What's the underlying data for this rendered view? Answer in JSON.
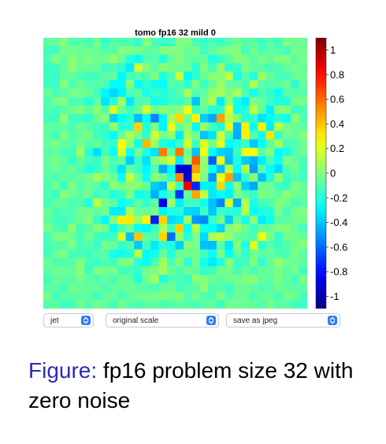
{
  "title": "tomo fp16 32 mild 0",
  "controls": {
    "colormap": {
      "value": "jet"
    },
    "scale": {
      "value": "original scale"
    },
    "save": {
      "value": "save as jpeg"
    }
  },
  "caption": {
    "prefix": "Figure:",
    "text": " fp16 problem size 32 with zero noise"
  },
  "colors": {
    "caret": "#2f7df6",
    "caption_prefix": "#2b2bb8"
  },
  "chart_data": {
    "type": "heatmap",
    "title": "tomo fp16 32 mild 0",
    "colormap": "jet",
    "rows": 32,
    "cols": 32,
    "vmin": -1.1,
    "vmax": 1.1,
    "colorbar_ticks": [
      1,
      0.8,
      0.6,
      0.4,
      0.2,
      0,
      -0.2,
      -0.4,
      -0.6,
      -0.8,
      -1
    ],
    "colorbar_tick_labels": [
      "1",
      "0.8",
      "0.6",
      "0.4",
      "0.2",
      "0",
      "-0.2",
      "-0.4",
      "-0.6",
      "-0.8",
      "-1"
    ],
    "values": [
      [
        -0.07,
        -0.06,
        0.01,
        -0.11,
        -0.09,
        -0.12,
        -0.03,
        -0.17,
        -0.08,
        -0.12,
        -0.1,
        -0.17,
        0.02,
        -0.12,
        -0.17,
        -0.14,
        -0.0,
        -0.01,
        -0.12,
        -0.16,
        -0.11,
        -0.15,
        -0.08,
        -0.04,
        -0.08,
        -0.09,
        -0.15,
        -0.08,
        -0.14,
        -0.01,
        -0.05,
        -0.04
      ],
      [
        -0.13,
        -0.14,
        -0.03,
        -0.03,
        -0.04,
        -0.05,
        -0.05,
        -0.09,
        -0.09,
        -0.0,
        -0.01,
        -0.02,
        -0.07,
        -0.08,
        0.01,
        -0.0,
        -0.0,
        -0.05,
        -0.02,
        -0.14,
        -0.07,
        -0.02,
        -0.01,
        0.01,
        -0.13,
        -0.04,
        -0.11,
        -0.07,
        -0.08,
        -0.14,
        -0.03,
        -0.03
      ],
      [
        -0.11,
        0.0,
        -0.07,
        0.02,
        -0.05,
        0.0,
        -0.04,
        -0.03,
        0.05,
        -0.05,
        -0.19,
        -0.26,
        -0.1,
        -0.09,
        -0.21,
        -0.04,
        0.01,
        -0.07,
        -0.07,
        -0.05,
        -0.22,
        -0.15,
        -0.07,
        0.01,
        -0.01,
        -0.08,
        -0.02,
        -0.05,
        -0.01,
        -0.0,
        -0.08,
        -0.02
      ],
      [
        -0.16,
        -0.14,
        -0.07,
        0.03,
        -0.04,
        -0.05,
        -0.06,
        -0.14,
        -0.12,
        -0.17,
        -0.31,
        0.16,
        0.01,
        -0.09,
        0.02,
        -0.02,
        -0.04,
        -0.04,
        -0.19,
        -0.01,
        -0.14,
        0.05,
        -0.17,
        -0.16,
        -0.02,
        -0.06,
        -0.09,
        -0.12,
        -0.11,
        -0.06,
        -0.03,
        -0.04
      ],
      [
        -0.13,
        -0.16,
        -0.07,
        -0.06,
        -0.12,
        -0.14,
        -0.12,
        -0.08,
        -0.07,
        -0.29,
        -0.12,
        -0.1,
        -0.11,
        0.01,
        -0.21,
        -0.11,
        0.15,
        -0.29,
        -0.17,
        -0.05,
        0.03,
        0.02,
        0.13,
        -0.22,
        -0.09,
        -0.2,
        0.06,
        -0.06,
        -0.12,
        -0.12,
        -0.05,
        -0.04
      ],
      [
        -0.14,
        -0.15,
        0.01,
        -0.11,
        -0.05,
        -0.11,
        -0.09,
        -0.11,
        -0.28,
        -0.28,
        0.03,
        -0.27,
        -0.17,
        -0.25,
        -0.26,
        -0.08,
        -0.1,
        -0.18,
        0.01,
        -0.15,
        -0.05,
        0.06,
        -0.06,
        -0.07,
        -0.13,
        0.09,
        -0.08,
        -0.1,
        -0.09,
        -0.05,
        -0.18,
        -0.06
      ],
      [
        -0.05,
        -0.12,
        -0.09,
        -0.02,
        -0.02,
        -0.06,
        -0.13,
        -0.29,
        -0.36,
        -0.3,
        -0.11,
        -0.07,
        -0.23,
        -0.15,
        -0.19,
        -0.16,
        -0.1,
        0.08,
        -0.11,
        -0.07,
        0.06,
        0.08,
        -0.01,
        0.09,
        -0.1,
        -0.24,
        -0.11,
        -0.15,
        -0.26,
        -0.08,
        -0.09,
        -0.08
      ],
      [
        -0.1,
        -0.02,
        -0.0,
        -0.12,
        -0.11,
        -0.19,
        -0.07,
        -0.33,
        -0.2,
        0.08,
        -0.32,
        -0.12,
        -0.08,
        -0.24,
        -0.22,
        -0.14,
        -0.15,
        -0.08,
        -0.4,
        -0.02,
        0.1,
        -0.31,
        0.03,
        -0.23,
        -0.31,
        -0.01,
        -0.05,
        -0.15,
        -0.2,
        -0.2,
        -0.02,
        -0.02
      ],
      [
        -0.1,
        -0.12,
        -0.08,
        -0.04,
        -0.0,
        -0.07,
        0.02,
        -0.11,
        0.21,
        -0.04,
        -0.15,
        -0.06,
        0.19,
        -0.04,
        0.03,
        -0.03,
        0.02,
        0.25,
        -0.15,
        -0.07,
        -0.2,
        -0.18,
        0.22,
        -0.26,
        -0.19,
        0.13,
        -0.07,
        -0.3,
        0.01,
        0.02,
        -0.16,
        -0.11
      ],
      [
        -0.14,
        -0.15,
        0.04,
        -0.14,
        -0.14,
        -0.17,
        -0.05,
        0.03,
        -0.37,
        -0.27,
        -0.18,
        -0.42,
        -0.26,
        -0.54,
        -0.29,
        0.08,
        0.36,
        -0.03,
        0.3,
        -0.38,
        -0.46,
        0.48,
        0.11,
        0.01,
        -0.2,
        -0.15,
        -0.34,
        -0.27,
        -0.19,
        -0.26,
        0.04,
        -0.1
      ],
      [
        -0.06,
        -0.08,
        -0.06,
        -0.12,
        -0.04,
        -0.09,
        -0.12,
        -0.15,
        0.05,
        -0.18,
        -0.18,
        0.37,
        -0.21,
        -0.01,
        -0.3,
        0.23,
        -0.06,
        0.02,
        -0.28,
        0.05,
        -0.12,
        -0.23,
        0.23,
        -0.44,
        0.31,
        -0.28,
        0.3,
        -0.31,
        0.13,
        -0.03,
        -0.05,
        -0.07
      ],
      [
        -0.08,
        -0.13,
        -0.01,
        -0.1,
        -0.05,
        -0.02,
        -0.14,
        -0.18,
        -0.28,
        -0.05,
        0.09,
        -0.01,
        -0.18,
        0.17,
        -0.02,
        0.04,
        -0.32,
        0.08,
        -0.03,
        -0.4,
        -0.33,
        0.16,
        -0.11,
        -0.45,
        0.31,
        -0.08,
        -0.25,
        0.33,
        -0.18,
        -0.03,
        -0.06,
        0.01
      ],
      [
        -0.04,
        -0.02,
        -0.06,
        -0.1,
        -0.03,
        -0.09,
        -0.05,
        -0.14,
        -0.17,
        0.29,
        0.04,
        -0.26,
        0.43,
        0.06,
        -0.22,
        -0.28,
        -0.16,
        0.17,
        -0.14,
        0.2,
        -0.03,
        0.23,
        -0.27,
        -0.22,
        -0.17,
        -0.39,
        -0.28,
        -0.08,
        0.09,
        -0.12,
        -0.1,
        -0.04
      ],
      [
        -0.09,
        -0.06,
        -0.12,
        -0.13,
        0.07,
        -0.19,
        -0.34,
        -0.12,
        -0.26,
        0.21,
        -0.25,
        -0.03,
        -0.21,
        -0.34,
        0.56,
        -0.09,
        0.57,
        -0.04,
        -0.41,
        0.24,
        -0.27,
        -0.37,
        -0.39,
        -0.15,
        0.24,
        0.25,
        -0.07,
        0.01,
        -0.28,
        -0.22,
        -0.1,
        -0.04
      ],
      [
        -0.06,
        -0.02,
        -0.06,
        -0.17,
        -0.06,
        -0.12,
        -0.17,
        -0.02,
        -0.11,
        -0.07,
        -0.38,
        -0.15,
        -0.34,
        -0.01,
        0.07,
        0.2,
        -0.31,
        0.03,
        0.64,
        0.05,
        -0.62,
        0.23,
        -0.42,
        -0.21,
        -0.38,
        -0.44,
        -0.31,
        -0.12,
        -0.26,
        -0.0,
        -0.06,
        -0.12
      ],
      [
        -0.08,
        -0.04,
        -0.08,
        -0.06,
        -0.11,
        -0.21,
        -0.15,
        -0.04,
        -0.13,
        -0.34,
        -0.07,
        -0.14,
        -0.29,
        -0.1,
        -0.45,
        -0.29,
        -0.9,
        -0.93,
        0.48,
        0.04,
        -0.26,
        -0.42,
        0.13,
        -0.26,
        0.12,
        -0.48,
        -0.1,
        -0.26,
        -0.35,
        -0.11,
        -0.03,
        -0.13
      ],
      [
        -0.08,
        -0.11,
        -0.08,
        -0.08,
        -0.06,
        -0.04,
        0.08,
        -0.0,
        -0.04,
        -0.26,
        0.16,
        -0.05,
        -0.27,
        0.04,
        -0.06,
        -0.19,
        0.54,
        -0.92,
        0.32,
        -0.01,
        -0.5,
        0.24,
        0.48,
        -0.4,
        -0.16,
        0.02,
        -0.41,
        -0.21,
        0.05,
        -0.15,
        -0.11,
        -0.12
      ],
      [
        -0.11,
        -0.03,
        -0.14,
        -0.0,
        -0.1,
        -0.04,
        -0.1,
        -0.17,
        0.02,
        -0.03,
        0.02,
        0.03,
        -0.05,
        -0.38,
        -0.43,
        0.15,
        -0.15,
        0.86,
        -0.74,
        -0.3,
        -0.31,
        0.36,
        -0.26,
        0.03,
        -0.37,
        -0.46,
        -0.04,
        -0.03,
        -0.13,
        -0.15,
        0.0,
        -0.06
      ],
      [
        -0.11,
        -0.15,
        0.01,
        -0.04,
        -0.07,
        -0.04,
        -0.14,
        -0.1,
        -0.22,
        -0.15,
        0.01,
        -0.25,
        -0.2,
        -0.45,
        -0.24,
        -0.12,
        -0.71,
        -0.07,
        0.47,
        0.14,
        -0.32,
        -0.27,
        -0.3,
        -0.02,
        -0.08,
        -0.16,
        0.0,
        -0.03,
        -0.07,
        0.02,
        -0.04,
        -0.06
      ],
      [
        -0.13,
        -0.06,
        -0.07,
        -0.11,
        -0.1,
        -0.21,
        0.13,
        -0.03,
        -0.08,
        -0.25,
        -0.19,
        -0.08,
        -0.17,
        -0.08,
        -0.87,
        0.06,
        -0.31,
        -0.13,
        -0.14,
        -0.24,
        -0.41,
        -0.54,
        0.18,
        -0.46,
        0.1,
        -0.22,
        -0.13,
        -0.11,
        0.01,
        -0.03,
        -0.12,
        -0.08
      ],
      [
        -0.04,
        -0.12,
        -0.1,
        -0.1,
        -0.04,
        -0.03,
        -0.07,
        -0.03,
        -0.31,
        -0.31,
        0.09,
        -0.05,
        -0.05,
        -0.02,
        -0.3,
        -0.22,
        -0.19,
        -0.36,
        -0.37,
        -0.14,
        -0.4,
        -0.16,
        -0.19,
        -0.21,
        0.12,
        -0.28,
        -0.21,
        -0.2,
        -0.02,
        -0.12,
        -0.02,
        -0.01
      ],
      [
        -0.07,
        -0.13,
        -0.14,
        -0.1,
        -0.04,
        0.0,
        -0.15,
        -0.29,
        0.01,
        0.31,
        0.32,
        0.05,
        0.3,
        -0.76,
        0.37,
        -0.35,
        -0.32,
        0.05,
        -0.5,
        -0.53,
        -0.17,
        -0.01,
        -0.39,
        -0.07,
        -0.23,
        0.01,
        -0.31,
        -0.24,
        -0.09,
        -0.08,
        -0.04,
        -0.02
      ],
      [
        -0.02,
        -0.09,
        -0.13,
        0.03,
        -0.14,
        -0.08,
        0.01,
        -0.03,
        -0.26,
        -0.11,
        -0.03,
        -0.26,
        -0.29,
        -0.15,
        0.1,
        -0.14,
        0.37,
        -0.26,
        0.13,
        -0.25,
        -0.28,
        -0.37,
        -0.0,
        0.06,
        -0.04,
        -0.15,
        -0.06,
        -0.05,
        -0.01,
        0.01,
        -0.06,
        -0.13
      ],
      [
        -0.13,
        -0.02,
        -0.0,
        -0.04,
        -0.13,
        -0.03,
        -0.13,
        -0.16,
        -0.14,
        0.19,
        -0.41,
        0.4,
        -0.07,
        -0.11,
        0.37,
        -0.59,
        0.04,
        -0.18,
        -0.02,
        -0.36,
        0.1,
        0.14,
        0.04,
        -0.06,
        -0.09,
        -0.11,
        0.24,
        0.0,
        -0.16,
        -0.04,
        -0.02,
        -0.05
      ],
      [
        -0.11,
        -0.1,
        -0.09,
        -0.01,
        -0.12,
        -0.09,
        -0.15,
        -0.02,
        -0.05,
        -0.17,
        -0.11,
        -0.39,
        -0.12,
        -0.32,
        -0.18,
        -0.21,
        -0.38,
        0.01,
        -0.01,
        -0.41,
        -0.42,
        -0.09,
        -0.32,
        0.01,
        -0.23,
        0.21,
        -0.17,
        -0.09,
        -0.15,
        -0.1,
        -0.03,
        0.01
      ],
      [
        -0.14,
        -0.06,
        -0.0,
        -0.12,
        -0.13,
        -0.14,
        -0.09,
        -0.09,
        -0.23,
        -0.24,
        -0.2,
        0.12,
        -0.28,
        -0.24,
        -0.06,
        -0.2,
        -0.06,
        -0.03,
        -0.04,
        -0.12,
        -0.26,
        -0.01,
        -0.28,
        -0.07,
        -0.17,
        -0.03,
        -0.08,
        -0.06,
        -0.11,
        -0.11,
        -0.01,
        -0.09
      ],
      [
        -0.04,
        -0.1,
        -0.09,
        -0.09,
        -0.0,
        -0.12,
        -0.15,
        -0.11,
        -0.14,
        -0.01,
        -0.01,
        -0.19,
        -0.26,
        -0.11,
        0.07,
        -0.12,
        0.01,
        -0.18,
        -0.03,
        -0.24,
        -0.32,
        -0.21,
        0.02,
        -0.15,
        -0.14,
        0.0,
        -0.18,
        -0.07,
        0.04,
        -0.03,
        -0.05,
        -0.06
      ],
      [
        -0.08,
        -0.04,
        -0.04,
        -0.06,
        0.03,
        -0.15,
        -0.01,
        -0.03,
        -0.03,
        -0.13,
        -0.12,
        -0.16,
        -0.03,
        -0.01,
        0.08,
        -0.05,
        -0.11,
        -0.04,
        -0.06,
        -0.17,
        -0.14,
        -0.03,
        -0.03,
        -0.13,
        -0.05,
        -0.12,
        -0.05,
        -0.06,
        -0.02,
        -0.07,
        -0.03,
        -0.14
      ],
      [
        -0.13,
        -0.06,
        -0.07,
        -0.08,
        -0.03,
        -0.06,
        -0.11,
        -0.06,
        -0.12,
        -0.04,
        -0.07,
        -0.2,
        -0.03,
        0.09,
        -0.2,
        -0.1,
        -0.12,
        -0.16,
        0.02,
        -0.0,
        -0.05,
        -0.07,
        -0.04,
        -0.03,
        0.01,
        0.02,
        -0.06,
        -0.08,
        -0.0,
        -0.07,
        -0.13,
        -0.01
      ],
      [
        -0.08,
        -0.07,
        -0.12,
        -0.04,
        -0.05,
        -0.07,
        -0.06,
        -0.11,
        -0.07,
        -0.06,
        -0.05,
        -0.07,
        -0.09,
        -0.12,
        -0.06,
        -0.04,
        -0.14,
        -0.1,
        -0.08,
        0.03,
        -0.11,
        -0.09,
        -0.14,
        -0.05,
        -0.05,
        -0.07,
        -0.11,
        -0.09,
        -0.04,
        -0.06,
        -0.09,
        -0.06
      ],
      [
        -0.03,
        -0.13,
        -0.1,
        -0.07,
        -0.07,
        -0.07,
        -0.13,
        -0.06,
        -0.05,
        -0.12,
        -0.07,
        -0.04,
        -0.03,
        -0.02,
        -0.0,
        -0.02,
        -0.0,
        -0.1,
        -0.03,
        -0.1,
        -0.12,
        -0.01,
        -0.11,
        -0.06,
        -0.05,
        -0.12,
        -0.06,
        -0.06,
        -0.12,
        -0.03,
        -0.03,
        -0.13
      ],
      [
        -0.09,
        -0.07,
        -0.14,
        -0.13,
        -0.03,
        -0.1,
        -0.02,
        -0.06,
        -0.12,
        -0.03,
        -0.08,
        -0.12,
        -0.07,
        -0.07,
        -0.11,
        -0.09,
        -0.06,
        -0.09,
        -0.11,
        -0.09,
        -0.06,
        -0.14,
        -0.03,
        -0.03,
        -0.05,
        -0.06,
        -0.1,
        -0.02,
        -0.08,
        -0.08,
        -0.13,
        -0.14
      ]
    ]
  }
}
